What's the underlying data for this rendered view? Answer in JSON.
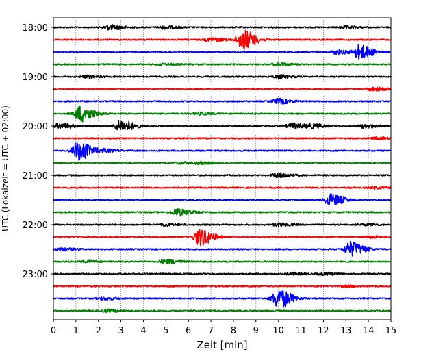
{
  "chart_data": {
    "type": "line",
    "title": "",
    "xlabel": "Zeit  [min]",
    "ylabel": "UTC (Lokalzeit = UTC + 02:00)",
    "xlim": [
      0,
      15
    ],
    "x_ticks": [
      0,
      1,
      2,
      3,
      4,
      5,
      6,
      7,
      8,
      9,
      10,
      11,
      12,
      13,
      14,
      15
    ],
    "y_tick_labels": [
      "18:00",
      "19:00",
      "20:00",
      "21:00",
      "22:00",
      "23:00"
    ],
    "grid": "vertical dotted",
    "row_interval_min": 15,
    "colors": [
      "#000000",
      "#ff0000",
      "#0000ff",
      "#008000"
    ],
    "rows": [
      {
        "time": "18:00",
        "color": "#000000",
        "events": [
          {
            "x": 2.5,
            "amp": 0.25
          },
          {
            "x": 4.95,
            "amp": 0.15
          },
          {
            "x": 13.0,
            "amp": 0.12
          }
        ]
      },
      {
        "time": "18:15",
        "color": "#ff0000",
        "events": [
          {
            "x": 8.4,
            "amp": 1.0
          },
          {
            "x": 7.0,
            "amp": 0.2
          }
        ]
      },
      {
        "time": "18:30",
        "color": "#0000ff",
        "events": [
          {
            "x": 13.6,
            "amp": 0.7
          },
          {
            "x": 12.6,
            "amp": 0.2
          }
        ]
      },
      {
        "time": "18:45",
        "color": "#008000",
        "events": [
          {
            "x": 10.0,
            "amp": 0.15
          },
          {
            "x": 4.8,
            "amp": 0.1
          }
        ]
      },
      {
        "time": "19:00",
        "color": "#000000",
        "events": [
          {
            "x": 10.0,
            "amp": 0.15
          },
          {
            "x": 1.5,
            "amp": 0.12
          }
        ]
      },
      {
        "time": "19:15",
        "color": "#ff0000",
        "events": [
          {
            "x": 14.2,
            "amp": 0.18
          }
        ]
      },
      {
        "time": "19:30",
        "color": "#0000ff",
        "events": [
          {
            "x": 10.0,
            "amp": 0.25
          }
        ]
      },
      {
        "time": "19:45",
        "color": "#008000",
        "events": [
          {
            "x": 1.2,
            "amp": 0.85
          },
          {
            "x": 6.5,
            "amp": 0.12
          }
        ]
      },
      {
        "time": "20:00",
        "color": "#000000",
        "events": [
          {
            "x": 3.0,
            "amp": 0.6
          },
          {
            "x": 0.3,
            "amp": 0.25
          },
          {
            "x": 10.6,
            "amp": 0.25
          },
          {
            "x": 11.5,
            "amp": 0.2
          },
          {
            "x": 13.8,
            "amp": 0.18
          }
        ]
      },
      {
        "time": "20:15",
        "color": "#ff0000",
        "events": [
          {
            "x": 14.4,
            "amp": 0.1
          }
        ]
      },
      {
        "time": "20:30",
        "color": "#0000ff",
        "events": [
          {
            "x": 1.1,
            "amp": 1.0
          },
          {
            "x": 2.2,
            "amp": 0.15
          }
        ]
      },
      {
        "time": "20:45",
        "color": "#008000",
        "events": [
          {
            "x": 6.5,
            "amp": 0.12
          },
          {
            "x": 5.6,
            "amp": 0.1
          }
        ]
      },
      {
        "time": "21:00",
        "color": "#000000",
        "events": [
          {
            "x": 10.0,
            "amp": 0.25
          }
        ]
      },
      {
        "time": "21:15",
        "color": "#ff0000",
        "events": [
          {
            "x": 14.3,
            "amp": 0.1
          }
        ]
      },
      {
        "time": "21:30",
        "color": "#0000ff",
        "events": [
          {
            "x": 12.3,
            "amp": 0.6
          }
        ]
      },
      {
        "time": "21:45",
        "color": "#008000",
        "events": [
          {
            "x": 5.5,
            "amp": 0.35
          }
        ]
      },
      {
        "time": "22:00",
        "color": "#000000",
        "events": [
          {
            "x": 5.0,
            "amp": 0.1
          },
          {
            "x": 10.0,
            "amp": 0.15
          },
          {
            "x": 13.8,
            "amp": 0.1
          }
        ]
      },
      {
        "time": "22:15",
        "color": "#ff0000",
        "events": [
          {
            "x": 6.5,
            "amp": 0.85
          },
          {
            "x": 14.1,
            "amp": 0.1
          }
        ]
      },
      {
        "time": "22:30",
        "color": "#0000ff",
        "events": [
          {
            "x": 13.2,
            "amp": 0.75
          },
          {
            "x": 0.3,
            "amp": 0.15
          }
        ]
      },
      {
        "time": "22:45",
        "color": "#008000",
        "events": [
          {
            "x": 5.0,
            "amp": 0.2
          },
          {
            "x": 1.5,
            "amp": 0.08
          }
        ]
      },
      {
        "time": "23:00",
        "color": "#000000",
        "events": [
          {
            "x": 10.6,
            "amp": 0.12
          },
          {
            "x": 12.0,
            "amp": 0.12
          }
        ]
      },
      {
        "time": "23:15",
        "color": "#ff0000",
        "events": [
          {
            "x": 13.0,
            "amp": 0.08
          }
        ]
      },
      {
        "time": "23:30",
        "color": "#0000ff",
        "events": [
          {
            "x": 10.0,
            "amp": 1.0
          },
          {
            "x": 2.2,
            "amp": 0.12
          }
        ]
      },
      {
        "time": "23:45",
        "color": "#008000",
        "events": [
          {
            "x": 2.4,
            "amp": 0.12
          }
        ]
      }
    ]
  }
}
